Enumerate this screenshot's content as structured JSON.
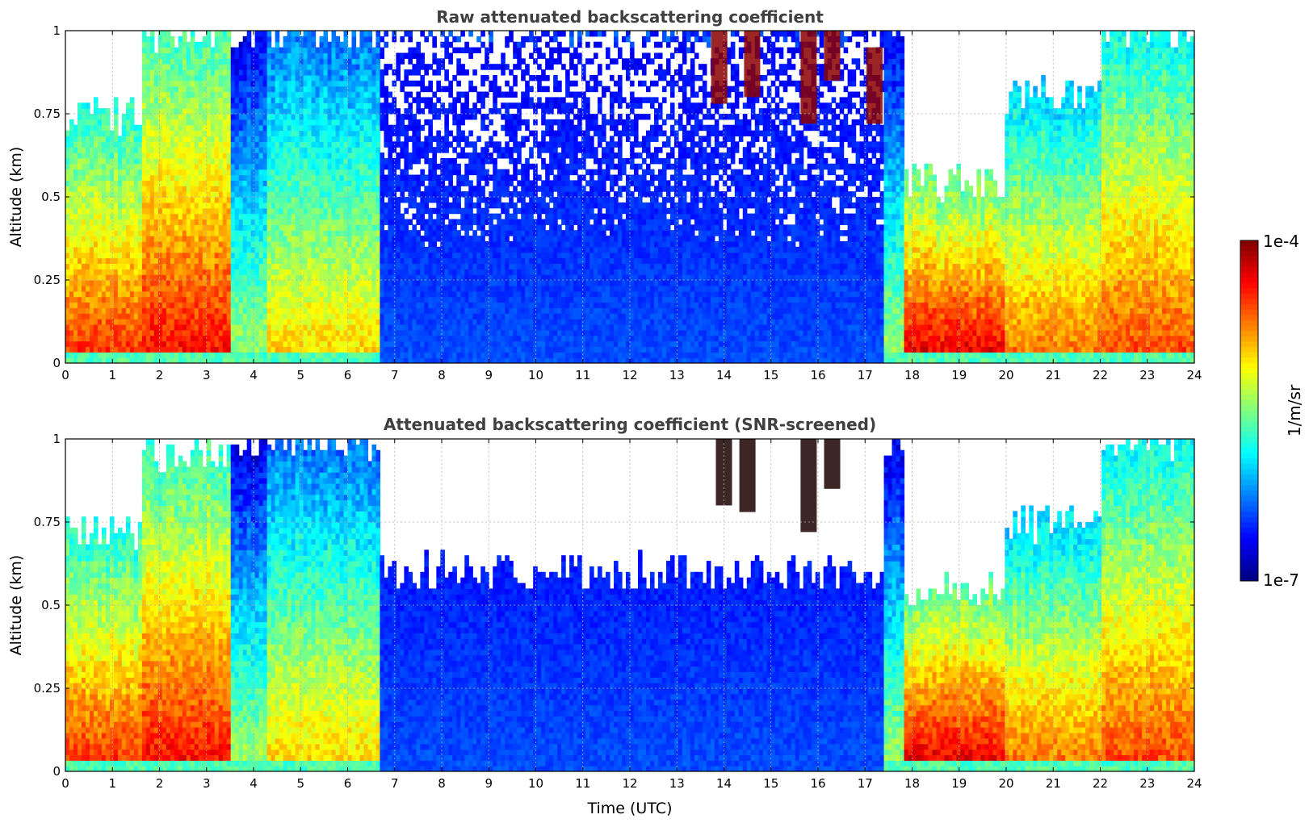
{
  "chart_data": [
    {
      "type": "heatmap",
      "title": "Raw attenuated backscattering coefficient",
      "xlabel": "",
      "ylabel": "Altitude (km)",
      "xlim": [
        0,
        24
      ],
      "ylim": [
        0,
        1
      ],
      "xticks": [
        0,
        1,
        2,
        3,
        4,
        5,
        6,
        7,
        8,
        9,
        10,
        11,
        12,
        13,
        14,
        15,
        16,
        17,
        18,
        19,
        20,
        21,
        22,
        23,
        24
      ],
      "yticks": [
        0,
        0.25,
        0.5,
        0.75,
        1
      ],
      "ytick_labels": [
        "0",
        "0.25",
        "0.5",
        "0.75",
        "1"
      ],
      "grid": true,
      "colormap": "jet",
      "regimes": [
        {
          "t0": 0.0,
          "t1": 1.6,
          "kind": "aerosol",
          "top_km": 0.75,
          "level": 0.85
        },
        {
          "t0": 1.6,
          "t1": 3.5,
          "kind": "aerosol",
          "top_km": 1.0,
          "level": 0.88
        },
        {
          "t0": 3.5,
          "t1": 4.3,
          "kind": "aerosol",
          "top_km": 1.0,
          "level": 0.55
        },
        {
          "t0": 4.3,
          "t1": 6.7,
          "kind": "aerosol",
          "top_km": 1.0,
          "level": 0.68
        },
        {
          "t0": 6.7,
          "t1": 17.4,
          "kind": "clear",
          "top_km": 1.0,
          "level": 0.2
        },
        {
          "t0": 17.4,
          "t1": 17.8,
          "kind": "aerosol",
          "top_km": 1.0,
          "level": 0.55
        },
        {
          "t0": 17.8,
          "t1": 20.0,
          "kind": "aerosol",
          "top_km": 0.55,
          "level": 0.92
        },
        {
          "t0": 20.0,
          "t1": 22.0,
          "kind": "aerosol",
          "top_km": 0.8,
          "level": 0.78
        },
        {
          "t0": 22.0,
          "t1": 24.0,
          "kind": "aerosol",
          "top_km": 1.0,
          "level": 0.82
        }
      ],
      "high_clouds": [
        {
          "t": 13.9,
          "z0": 0.78,
          "z1": 1.0
        },
        {
          "t": 14.6,
          "z0": 0.8,
          "z1": 1.0
        },
        {
          "t": 15.8,
          "z0": 0.72,
          "z1": 1.0
        },
        {
          "t": 16.3,
          "z0": 0.85,
          "z1": 1.0
        },
        {
          "t": 17.2,
          "z0": 0.72,
          "z1": 0.95
        }
      ]
    },
    {
      "type": "heatmap",
      "title": "Attenuated backscattering coefficient (SNR-screened)",
      "xlabel": "Time (UTC)",
      "ylabel": "Altitude (km)",
      "xlim": [
        0,
        24
      ],
      "ylim": [
        0,
        1
      ],
      "xticks": [
        0,
        1,
        2,
        3,
        4,
        5,
        6,
        7,
        8,
        9,
        10,
        11,
        12,
        13,
        14,
        15,
        16,
        17,
        18,
        19,
        20,
        21,
        22,
        23,
        24
      ],
      "yticks": [
        0,
        0.25,
        0.5,
        0.75,
        1
      ],
      "ytick_labels": [
        "0",
        "0.25",
        "0.5",
        "0.75",
        "1"
      ],
      "grid": true,
      "colormap": "jet",
      "regimes": [
        {
          "t0": 0.0,
          "t1": 1.6,
          "kind": "aerosol",
          "top_km": 0.72,
          "level": 0.85
        },
        {
          "t0": 1.6,
          "t1": 3.5,
          "kind": "aerosol",
          "top_km": 0.95,
          "level": 0.88
        },
        {
          "t0": 3.5,
          "t1": 4.3,
          "kind": "aerosol",
          "top_km": 1.0,
          "level": 0.55
        },
        {
          "t0": 4.3,
          "t1": 6.7,
          "kind": "aerosol",
          "top_km": 1.0,
          "level": 0.68
        },
        {
          "t0": 6.7,
          "t1": 17.4,
          "kind": "clear",
          "top_km": 0.6,
          "level": 0.2
        },
        {
          "t0": 17.4,
          "t1": 17.8,
          "kind": "aerosol",
          "top_km": 1.0,
          "level": 0.55
        },
        {
          "t0": 17.8,
          "t1": 20.0,
          "kind": "aerosol",
          "top_km": 0.55,
          "level": 0.92
        },
        {
          "t0": 20.0,
          "t1": 22.0,
          "kind": "aerosol",
          "top_km": 0.75,
          "level": 0.78
        },
        {
          "t0": 22.0,
          "t1": 24.0,
          "kind": "aerosol",
          "top_km": 1.0,
          "level": 0.82
        }
      ],
      "high_clouds": [
        {
          "t": 14.0,
          "z0": 0.8,
          "z1": 1.0
        },
        {
          "t": 14.5,
          "z0": 0.78,
          "z1": 1.0
        },
        {
          "t": 15.8,
          "z0": 0.72,
          "z1": 1.0
        },
        {
          "t": 16.3,
          "z0": 0.85,
          "z1": 1.0
        }
      ]
    }
  ],
  "colorbar": {
    "min_label": "1e-7",
    "max_label": "1e-4",
    "label": "1/m/sr",
    "colormap": "jet"
  }
}
